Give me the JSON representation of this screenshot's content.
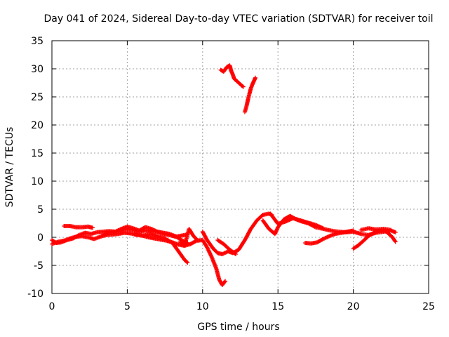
{
  "chart_data": {
    "type": "scatter",
    "title": "Day 041 of 2024, Sidereal Day-to-day VTEC variation (SDTVAR) for receiver toil",
    "xlabel": "GPS time / hours",
    "ylabel": "SDTVAR / TECUs",
    "xlim": [
      0,
      25
    ],
    "ylim": [
      -10,
      35
    ],
    "xticks": [
      0,
      5,
      10,
      15,
      20,
      25
    ],
    "yticks": [
      -10,
      -5,
      0,
      5,
      10,
      15,
      20,
      25,
      30,
      35
    ],
    "grid": true,
    "marker": "+",
    "series": [
      {
        "name": "SDTVAR",
        "color": "#ff0000",
        "tracks": [
          {
            "x": [
              0.0,
              0.4,
              0.8,
              1.2,
              1.6,
              2.0,
              2.4,
              2.8,
              3.2,
              3.6,
              4.0,
              4.4,
              4.8,
              5.2,
              5.6,
              6.0,
              6.4,
              6.8,
              7.2,
              7.6,
              8.0,
              8.4,
              8.8,
              9.2,
              9.6,
              10.0,
              10.3,
              10.6,
              10.9,
              11.1,
              11.3,
              11.5
            ],
            "y": [
              -1.2,
              -0.8,
              -0.6,
              -0.2,
              0.1,
              0.2,
              0.0,
              -0.3,
              0.1,
              0.4,
              0.5,
              0.6,
              0.8,
              0.7,
              0.5,
              0.3,
              0.0,
              -0.2,
              -0.4,
              -0.6,
              -0.9,
              -1.3,
              -1.5,
              -1.2,
              -0.6,
              -0.5,
              -1.8,
              -3.5,
              -5.5,
              -7.5,
              -8.5,
              -7.8
            ]
          },
          {
            "x": [
              0.0,
              0.3,
              0.6,
              1.0,
              1.4,
              1.8,
              2.2,
              2.6,
              3.0,
              3.4,
              3.8,
              4.2,
              4.6,
              5.0,
              5.4,
              5.8,
              6.2,
              6.6,
              7.0,
              7.4,
              7.8,
              8.2,
              8.6,
              9.0
            ],
            "y": [
              -0.5,
              -1.0,
              -0.9,
              -0.5,
              -0.2,
              0.4,
              0.8,
              0.6,
              0.9,
              1.0,
              1.1,
              1.0,
              1.2,
              1.5,
              1.3,
              1.0,
              1.2,
              1.1,
              1.0,
              0.6,
              0.4,
              0.1,
              0.3,
              0.5
            ]
          },
          {
            "x": [
              0.8,
              1.2,
              1.6,
              2.0,
              2.4,
              2.7
            ],
            "y": [
              2.0,
              2.0,
              1.8,
              1.8,
              1.9,
              1.7
            ]
          },
          {
            "x": [
              3.4,
              3.8,
              4.2,
              4.6,
              5.0,
              5.4,
              5.8,
              6.2,
              6.6,
              7.0,
              7.4,
              7.8,
              8.2,
              8.6,
              9.0
            ],
            "y": [
              0.5,
              0.8,
              1.0,
              1.5,
              1.9,
              1.6,
              1.2,
              1.8,
              1.5,
              1.0,
              0.8,
              0.6,
              0.2,
              -0.5,
              -1.0
            ]
          },
          {
            "x": [
              5.5,
              6.0,
              6.5,
              7.0,
              7.5,
              8.0,
              8.4,
              8.8,
              9.0
            ],
            "y": [
              0.5,
              0.3,
              0.6,
              0.2,
              -0.2,
              -1.0,
              -2.5,
              -4.0,
              -4.5
            ]
          },
          {
            "x": [
              8.5,
              8.8,
              9.1,
              9.4,
              9.7
            ],
            "y": [
              -0.8,
              -1.5,
              1.5,
              0.2,
              -0.6
            ]
          },
          {
            "x": [
              10.0,
              10.3,
              10.7,
              11.0,
              11.3,
              11.7,
              12.0,
              12.4,
              12.8,
              13.2,
              13.6,
              14.0,
              14.4,
              14.6
            ],
            "y": [
              1.0,
              -0.5,
              -2.0,
              -2.8,
              -3.0,
              -2.5,
              -2.8,
              -2.2,
              -0.5,
              1.5,
              3.0,
              4.0,
              4.2,
              4.0
            ]
          },
          {
            "x": [
              11.0,
              11.4,
              11.8,
              12.2
            ],
            "y": [
              -0.5,
              -1.2,
              -2.2,
              -3.0
            ]
          },
          {
            "x": [
              14.0,
              14.4,
              14.8,
              15.0,
              15.4,
              15.8,
              16.2,
              16.6,
              17.0,
              17.5,
              18.0,
              18.5,
              19.0,
              19.5,
              20.0,
              20.5,
              21.0,
              21.5,
              22.0,
              22.5,
              22.8
            ],
            "y": [
              3.0,
              1.5,
              0.6,
              1.8,
              3.2,
              3.8,
              3.2,
              2.8,
              2.5,
              1.8,
              1.5,
              1.2,
              1.0,
              0.9,
              1.0,
              0.6,
              0.4,
              0.8,
              1.0,
              1.2,
              0.9
            ]
          },
          {
            "x": [
              14.5,
              15.0,
              15.5,
              16.0,
              16.5,
              17.0,
              17.5,
              18.0
            ],
            "y": [
              4.2,
              2.4,
              2.8,
              3.4,
              3.0,
              2.6,
              2.2,
              1.6
            ]
          },
          {
            "x": [
              16.8,
              17.2,
              17.6,
              18.0,
              18.4,
              18.8,
              19.2,
              19.6,
              20.0
            ],
            "y": [
              -1.0,
              -1.1,
              -0.9,
              -0.3,
              0.2,
              0.6,
              0.8,
              1.0,
              1.2
            ]
          },
          {
            "x": [
              20.0,
              20.3,
              20.6,
              21.0,
              21.4,
              21.8,
              22.2,
              22.6,
              22.8
            ],
            "y": [
              -2.0,
              -1.5,
              -0.8,
              0.2,
              0.9,
              1.2,
              1.0,
              0.0,
              -0.8
            ]
          },
          {
            "x": [
              20.5,
              21.0,
              21.5,
              22.0,
              22.5
            ],
            "y": [
              1.3,
              1.6,
              1.4,
              1.5,
              1.3
            ]
          },
          {
            "x": [
              11.2,
              11.4,
              11.6,
              11.8,
              11.9,
              12.0,
              12.1,
              12.2,
              12.4,
              12.6,
              12.7
            ],
            "y": [
              29.8,
              29.5,
              30.3,
              30.6,
              29.6,
              29.0,
              28.2,
              28.0,
              27.5,
              27.0,
              26.8
            ]
          },
          {
            "x": [
              12.8,
              12.9,
              13.0,
              13.1,
              13.2,
              13.3,
              13.4,
              13.5
            ],
            "y": [
              22.3,
              23.2,
              24.4,
              25.5,
              26.5,
              27.2,
              27.8,
              28.4
            ]
          }
        ]
      }
    ]
  }
}
